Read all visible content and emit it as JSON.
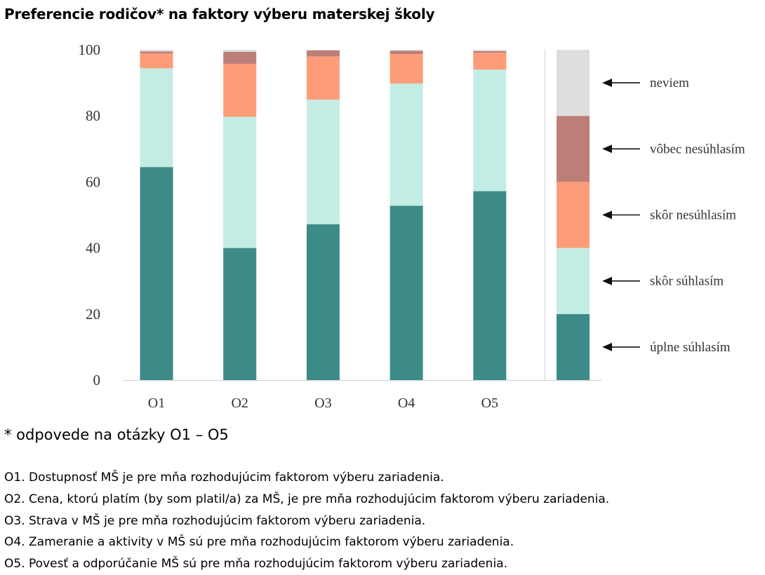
{
  "title": "Preferencie rodičov* na faktory výberu materskej školy",
  "footnote": "* odpovede na otázky O1 – O5",
  "questions": [
    "O1. Dostupnosť MŠ je pre mňa rozhodujúcim faktorom výberu zariadenia.",
    "O2. Cena, ktorú platím (by som platil/a) za MŠ, je pre mňa rozhodujúcim faktorom výberu zariadenia.",
    "O3. Strava v MŠ je pre mňa rozhodujúcim faktorom výberu zariadenia.",
    "O4. Zameranie a aktivity v MŠ sú pre mňa rozhodujúcim faktorom výberu zariadenia.",
    "O5. Povesť a odporúčanie MŠ sú pre mňa rozhodujúcim faktorom výberu zariadenia."
  ],
  "chart_data": {
    "type": "bar",
    "stacked": true,
    "categories": [
      "O1",
      "O2",
      "O3",
      "O4",
      "O5"
    ],
    "series": [
      {
        "name": "úplne súhlasím",
        "color": "#3d8b88",
        "values": [
          64.5,
          40,
          47.2,
          52.8,
          57.2
        ]
      },
      {
        "name": "skôr súhlasím",
        "color": "#c3ede4",
        "values": [
          29.9,
          39.7,
          37.7,
          37.0,
          36.8
        ]
      },
      {
        "name": "skôr nesúhlasím",
        "color": "#fd9c78",
        "values": [
          4.5,
          16.0,
          13.1,
          8.9,
          5.1
        ]
      },
      {
        "name": "vôbec nesúhlasím",
        "color": "#bd7e77",
        "values": [
          0.6,
          3.7,
          1.8,
          1.0,
          0.5
        ]
      },
      {
        "name": "neviem",
        "color": "#dedede",
        "values": [
          0.5,
          0.6,
          0.2,
          0.3,
          0.4
        ]
      }
    ],
    "yticks": [
      0,
      20,
      40,
      60,
      80,
      100
    ],
    "ylim": [
      0,
      100
    ],
    "legend": "right, stacked key column with arrows"
  }
}
